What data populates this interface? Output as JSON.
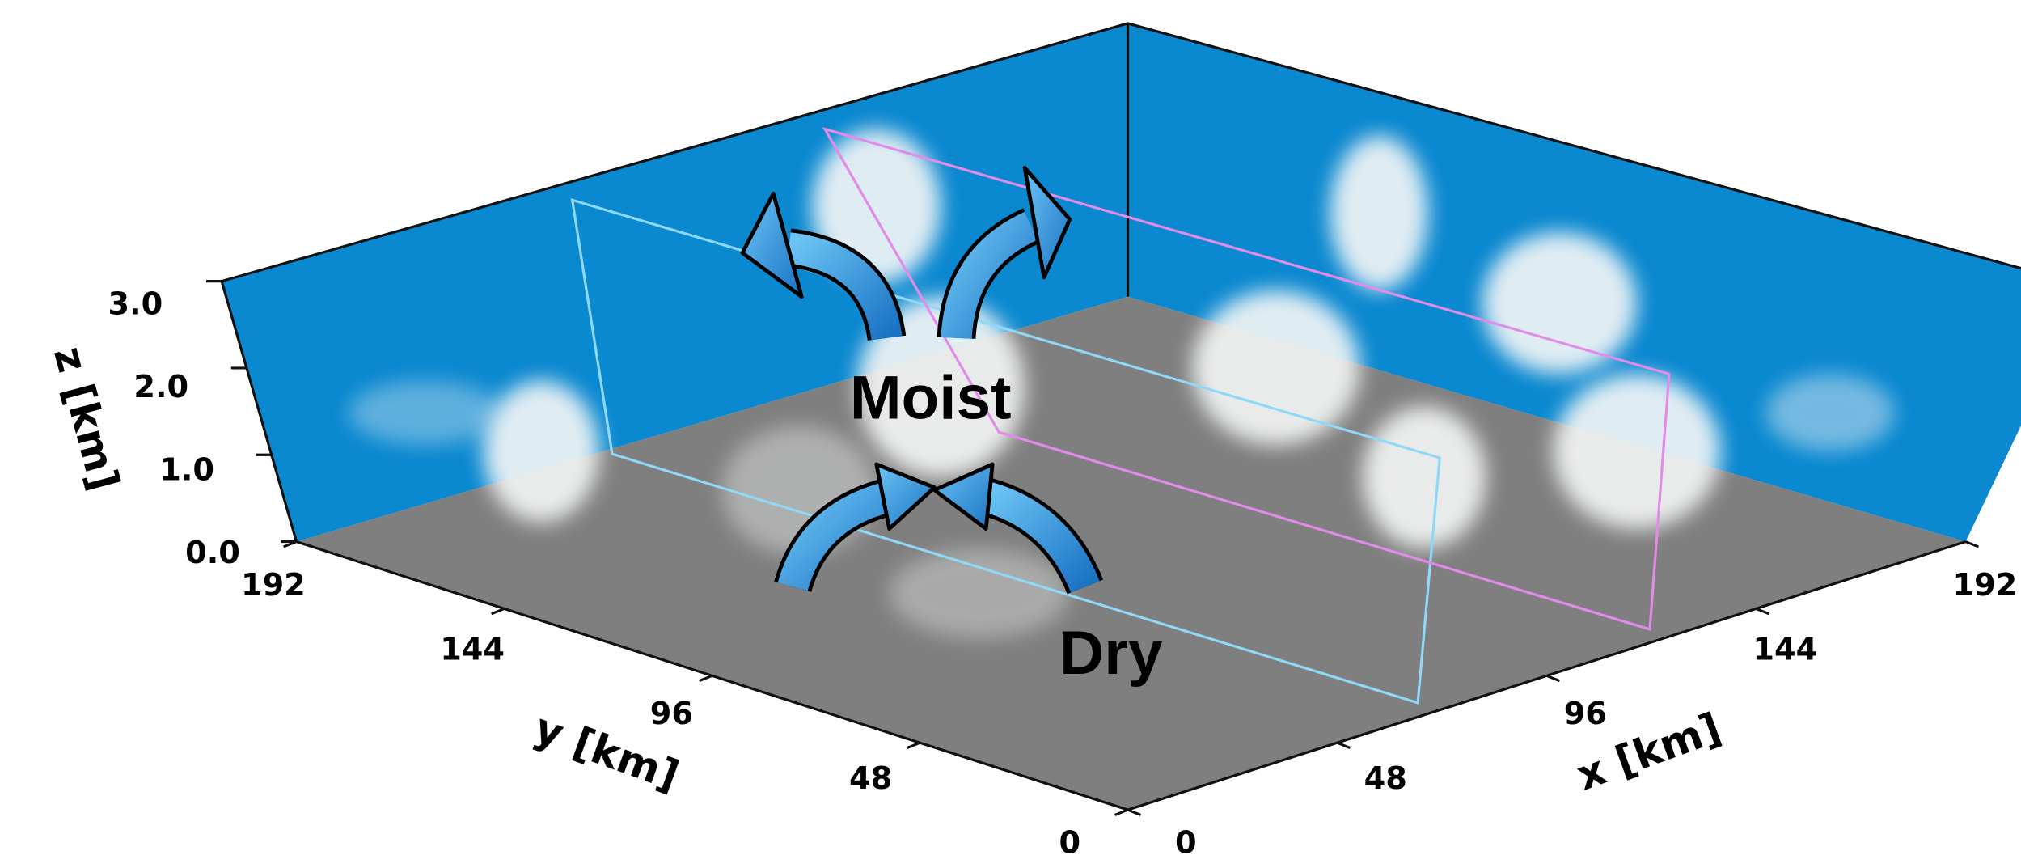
{
  "axes": {
    "x": {
      "label": "x [km]",
      "ticks": [
        0,
        48,
        96,
        144,
        192
      ]
    },
    "y": {
      "label": "y [km]",
      "ticks": [
        0,
        48,
        96,
        144,
        192
      ]
    },
    "z": {
      "label": "z [km]",
      "ticks": [
        {
          "value": 0,
          "label": "0.0"
        },
        {
          "value": 1,
          "label": "1.0"
        },
        {
          "value": 2,
          "label": "2.0"
        },
        {
          "value": 3,
          "label": "3.0"
        }
      ]
    }
  },
  "annotations": [
    "Moist",
    "Dry"
  ]
}
